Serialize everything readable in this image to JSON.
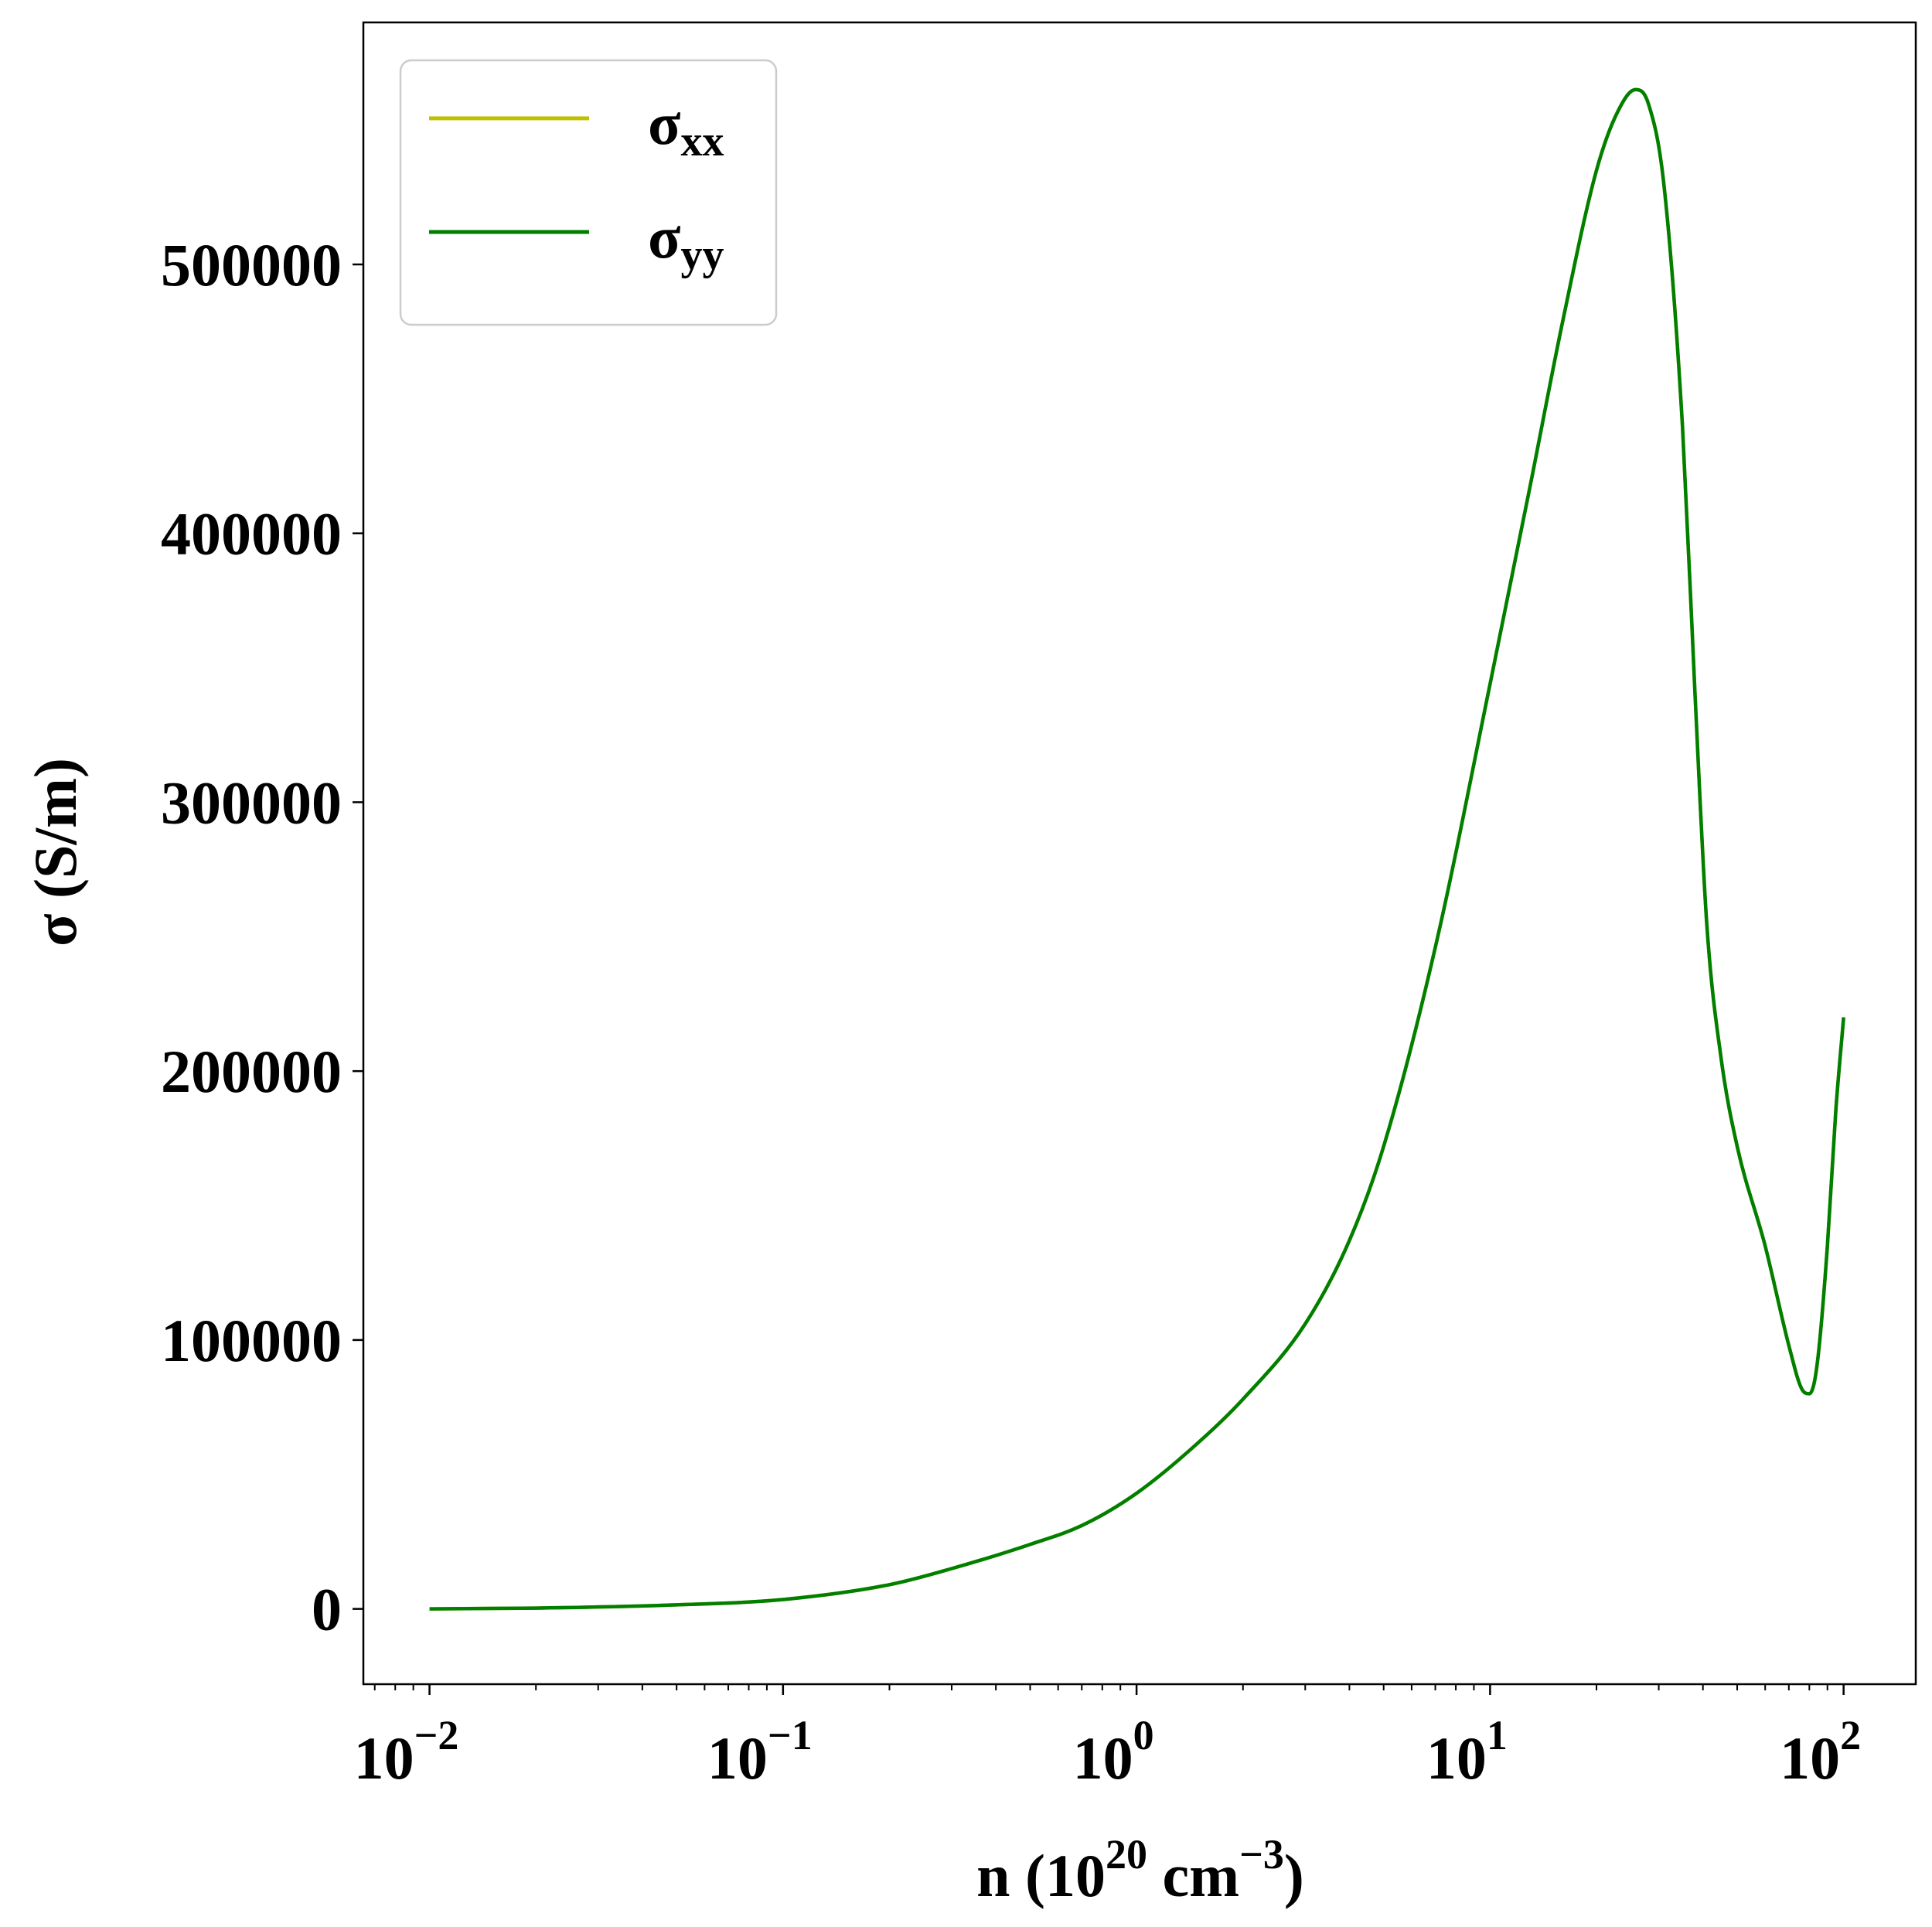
{
  "chart_data": {
    "type": "line",
    "xscale": "log",
    "xlim": [
      0.0065,
      160
    ],
    "ylim": [
      -28000,
      590000
    ],
    "xlabel": {
      "base": "n (10",
      "sup": "20",
      "mid": " cm",
      "sup2": "−3",
      "end": ")"
    },
    "ylabel": "σ (S/m)",
    "grid": false,
    "legend_position": "top-left",
    "x_ticks": [
      {
        "value": 0.01,
        "base": "10",
        "exp": "−2"
      },
      {
        "value": 0.1,
        "base": "10",
        "exp": "−1"
      },
      {
        "value": 1,
        "base": "10",
        "exp": "0"
      },
      {
        "value": 10,
        "base": "10",
        "exp": "1"
      },
      {
        "value": 100,
        "base": "10",
        "exp": "2"
      }
    ],
    "y_ticks": [
      {
        "value": 0,
        "label": "0"
      },
      {
        "value": 100000,
        "label": "100000"
      },
      {
        "value": 200000,
        "label": "200000"
      },
      {
        "value": 300000,
        "label": "300000"
      },
      {
        "value": 400000,
        "label": "400000"
      },
      {
        "value": 500000,
        "label": "500000"
      }
    ],
    "series": [
      {
        "name": "σ",
        "sub": "xx",
        "color": "#bfbf00",
        "x": [
          0.01,
          0.02,
          0.05,
          0.1,
          0.2,
          0.3,
          0.5,
          0.7,
          1.0,
          1.5,
          2.0,
          3.0,
          4.0,
          5.0,
          7.0,
          10.0,
          13.0,
          16.0,
          20.0,
          23.0,
          25.8,
          28.0,
          31.0,
          35.0,
          38.0,
          41.0,
          45.0,
          50.0,
          60.0,
          70.0,
          76.0,
          80.0,
          84.0,
          90.0,
          95.0,
          100.0
        ],
        "y": [
          0,
          300,
          1500,
          3500,
          9000,
          15000,
          24000,
          31000,
          43000,
          62000,
          78000,
          106000,
          137000,
          172000,
          246000,
          344000,
          418000,
          478000,
          535000,
          557000,
          565000,
          560000,
          530000,
          440000,
          340000,
          255000,
          205000,
          172000,
          135000,
          98000,
          82000,
          80000,
          90000,
          135000,
          185000,
          220000
        ]
      },
      {
        "name": "σ",
        "sub": "yy",
        "color": "#007f00",
        "x": [
          0.01,
          0.02,
          0.05,
          0.1,
          0.2,
          0.3,
          0.5,
          0.7,
          1.0,
          1.5,
          2.0,
          3.0,
          4.0,
          5.0,
          7.0,
          10.0,
          13.0,
          16.0,
          20.0,
          23.0,
          25.8,
          28.0,
          31.0,
          35.0,
          38.0,
          41.0,
          45.0,
          50.0,
          60.0,
          70.0,
          76.0,
          80.0,
          84.0,
          90.0,
          95.0,
          100.0
        ],
        "y": [
          0,
          300,
          1500,
          3500,
          9000,
          15000,
          24000,
          31000,
          43000,
          62000,
          78000,
          106000,
          137000,
          172000,
          246000,
          344000,
          418000,
          478000,
          535000,
          557000,
          565000,
          560000,
          530000,
          440000,
          340000,
          255000,
          205000,
          172000,
          135000,
          98000,
          82000,
          80000,
          90000,
          135000,
          185000,
          220000
        ]
      }
    ]
  }
}
